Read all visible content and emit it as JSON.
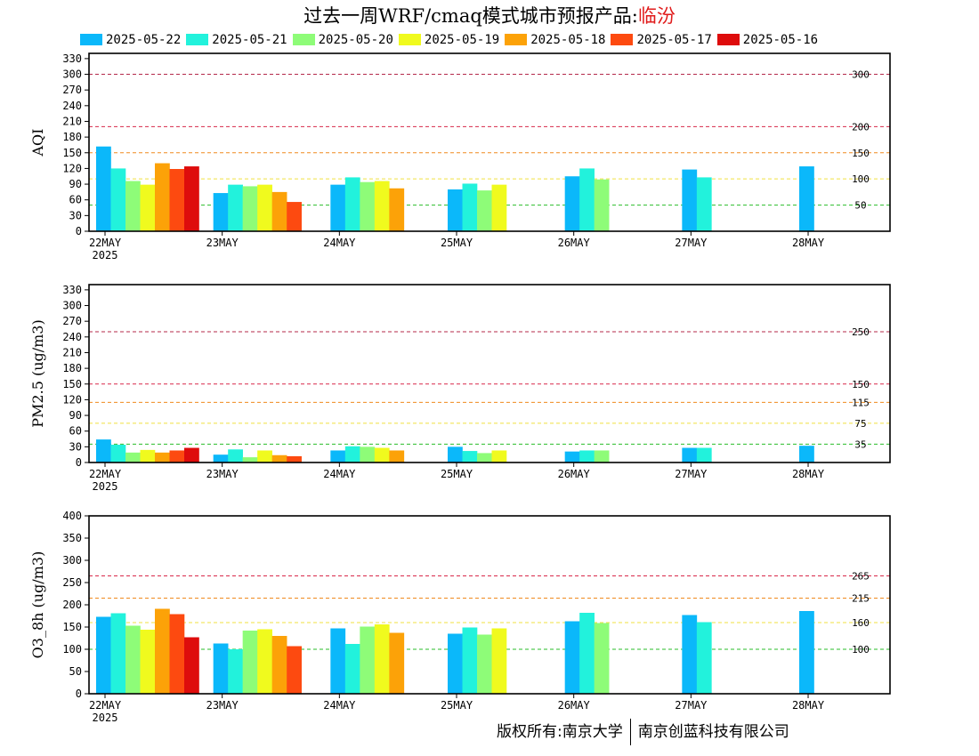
{
  "title": {
    "prefix": "过去一周WRF/cmaq模式城市预报产品:",
    "city": "临汾"
  },
  "colors": {
    "series": [
      "#0bb8fa",
      "#22f2dc",
      "#8efc78",
      "#f0fa1e",
      "#fca208",
      "#fd4a10",
      "#de0c0c"
    ],
    "threshold_lines": [
      "#2abd2a",
      "#f0e040",
      "#f08a1e",
      "#d8284a",
      "#b4284a"
    ]
  },
  "footer": {
    "left": "版权所有:南京大学",
    "right": "南京创蓝科技有限公司"
  },
  "chart_data": [
    {
      "type": "bar",
      "ylabel": "AQI",
      "ylim": [
        0,
        340
      ],
      "yticks": [
        0,
        30,
        60,
        90,
        120,
        150,
        180,
        210,
        240,
        270,
        300,
        330
      ],
      "date_ticks": [
        "22MAY",
        "23MAY",
        "24MAY",
        "25MAY",
        "26MAY",
        "27MAY",
        "28MAY"
      ],
      "year_label": "2025",
      "legend_position": "top",
      "thresholds": [
        {
          "value": 50,
          "label": "50",
          "color": "#2abd2a"
        },
        {
          "value": 100,
          "label": "100",
          "color": "#f0e040"
        },
        {
          "value": 150,
          "label": "150",
          "color": "#f08a1e"
        },
        {
          "value": 200,
          "label": "200",
          "color": "#d8284a"
        },
        {
          "value": 300,
          "label": "300",
          "color": "#b4284a"
        }
      ],
      "series": [
        {
          "name": "2025-05-22",
          "values": [
            162,
            73,
            89,
            80,
            105,
            118,
            124
          ]
        },
        {
          "name": "2025-05-21",
          "values": [
            120,
            89,
            103,
            91,
            120,
            103
          ]
        },
        {
          "name": "2025-05-20",
          "values": [
            96,
            86,
            94,
            78,
            99
          ]
        },
        {
          "name": "2025-05-19",
          "values": [
            89,
            89,
            96,
            89
          ]
        },
        {
          "name": "2025-05-18",
          "values": [
            130,
            75,
            82
          ]
        },
        {
          "name": "2025-05-17",
          "values": [
            119,
            56
          ]
        },
        {
          "name": "2025-05-16",
          "values": [
            124
          ]
        }
      ]
    },
    {
      "type": "bar",
      "ylabel": "PM2.5 (ug/m3)",
      "ylim": [
        0,
        340
      ],
      "yticks": [
        0,
        30,
        60,
        90,
        120,
        150,
        180,
        210,
        240,
        270,
        300,
        330
      ],
      "date_ticks": [
        "22MAY",
        "23MAY",
        "24MAY",
        "25MAY",
        "26MAY",
        "27MAY",
        "28MAY"
      ],
      "year_label": "2025",
      "thresholds": [
        {
          "value": 35,
          "label": "35",
          "color": "#2abd2a"
        },
        {
          "value": 75,
          "label": "75",
          "color": "#f0e040"
        },
        {
          "value": 115,
          "label": "115",
          "color": "#f08a1e"
        },
        {
          "value": 150,
          "label": "150",
          "color": "#d8284a"
        },
        {
          "value": 250,
          "label": "250",
          "color": "#b4284a"
        }
      ],
      "series": [
        {
          "name": "2025-05-22",
          "values": [
            44,
            15,
            23,
            30,
            21,
            28,
            32
          ]
        },
        {
          "name": "2025-05-21",
          "values": [
            34,
            25,
            31,
            22,
            23,
            28
          ]
        },
        {
          "name": "2025-05-20",
          "values": [
            19,
            10,
            30,
            18,
            23
          ]
        },
        {
          "name": "2025-05-19",
          "values": [
            24,
            23,
            28,
            23
          ]
        },
        {
          "name": "2025-05-18",
          "values": [
            19,
            14,
            23
          ]
        },
        {
          "name": "2025-05-17",
          "values": [
            23,
            12
          ]
        },
        {
          "name": "2025-05-16",
          "values": [
            28
          ]
        }
      ]
    },
    {
      "type": "bar",
      "ylabel": "O3_8h (ug/m3)",
      "ylim": [
        0,
        400
      ],
      "yticks": [
        0,
        50,
        100,
        150,
        200,
        250,
        300,
        350,
        400
      ],
      "date_ticks": [
        "22MAY",
        "23MAY",
        "24MAY",
        "25MAY",
        "26MAY",
        "27MAY",
        "28MAY"
      ],
      "year_label": "2025",
      "thresholds": [
        {
          "value": 100,
          "label": "100",
          "color": "#2abd2a"
        },
        {
          "value": 160,
          "label": "160",
          "color": "#f0e040"
        },
        {
          "value": 215,
          "label": "215",
          "color": "#f08a1e"
        },
        {
          "value": 265,
          "label": "265",
          "color": "#d8284a"
        }
      ],
      "series": [
        {
          "name": "2025-05-22",
          "values": [
            173,
            113,
            147,
            135,
            163,
            177,
            186
          ]
        },
        {
          "name": "2025-05-21",
          "values": [
            181,
            100,
            112,
            149,
            182,
            161
          ]
        },
        {
          "name": "2025-05-20",
          "values": [
            153,
            142,
            151,
            133,
            159
          ]
        },
        {
          "name": "2025-05-19",
          "values": [
            144,
            145,
            156,
            147
          ]
        },
        {
          "name": "2025-05-18",
          "values": [
            191,
            130,
            137
          ]
        },
        {
          "name": "2025-05-17",
          "values": [
            179,
            107
          ]
        },
        {
          "name": "2025-05-16",
          "values": [
            127
          ]
        }
      ]
    }
  ]
}
